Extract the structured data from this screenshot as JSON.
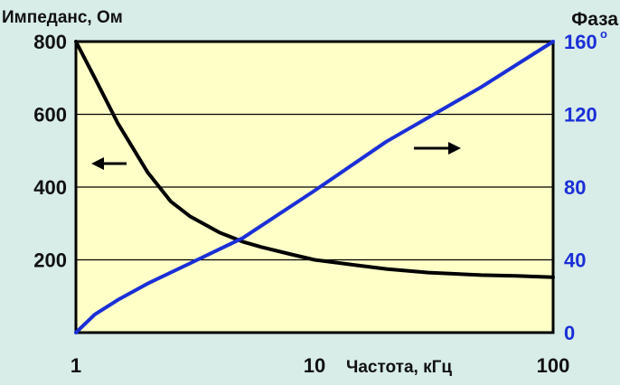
{
  "colors": {
    "page_background": "#d8ece8",
    "plot_background": "#ffffc8",
    "impedance_series": "#000000",
    "phase_series": "#1a2fd6",
    "grid": "#000000"
  },
  "chart_data": {
    "type": "line",
    "dual_axis": true,
    "x_scale": "log",
    "xlim": [
      1,
      100
    ],
    "x_ticks": [
      "1",
      "10",
      "100"
    ],
    "xlabel": "Частота, кГц",
    "ylabel_left": "Импеданс, Ом",
    "ylim_left": [
      0,
      800
    ],
    "y_ticks_left": [
      "200",
      "400",
      "600",
      "800"
    ],
    "ylabel_right": "Фаза",
    "ylim_right": [
      0,
      160
    ],
    "y_ticks_right": [
      "0",
      "40",
      "80",
      "120",
      "160"
    ],
    "y_right_unit_mark": "o",
    "grid": {
      "horizontal": true,
      "vertical": false
    },
    "arrows": [
      {
        "direction": "left",
        "indicates": "left-axis"
      },
      {
        "direction": "right",
        "indicates": "right-axis"
      }
    ],
    "series": [
      {
        "axis": "left",
        "x": [
          1,
          1.2,
          1.5,
          2,
          2.5,
          3,
          4,
          5,
          6,
          8,
          10,
          15,
          20,
          30,
          50,
          70,
          100
        ],
        "y": [
          800,
          700,
          575,
          440,
          360,
          320,
          275,
          250,
          235,
          215,
          200,
          185,
          175,
          165,
          158,
          156,
          152
        ]
      },
      {
        "axis": "right",
        "x": [
          1,
          1.2,
          1.5,
          2,
          3,
          5,
          10,
          20,
          50,
          100
        ],
        "y": [
          0,
          10,
          18,
          27,
          38,
          52,
          78,
          105,
          135,
          160
        ]
      }
    ]
  }
}
